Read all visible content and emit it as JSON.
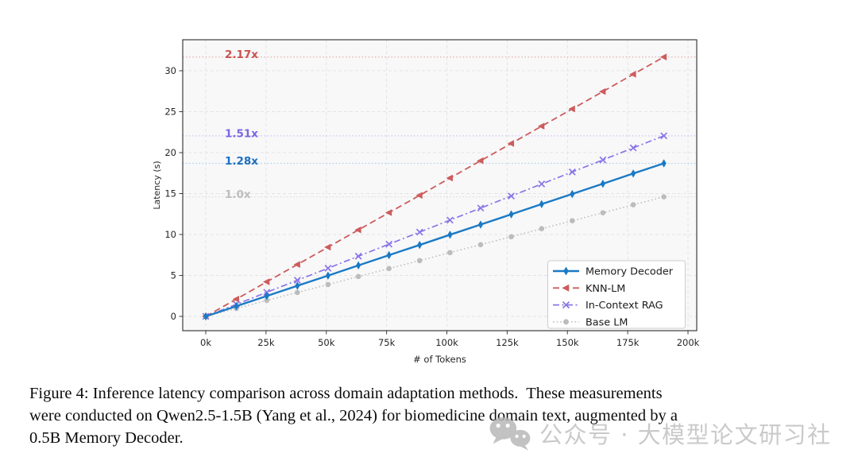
{
  "figure": {
    "caption_lines": [
      "Figure 4: Inference latency comparison across domain adaptation methods.  These measurements",
      "were conducted on Qwen2.5-1.5B (Yang et al., 2024) for biomedicine domain text, augmented by a",
      "0.5B Memory Decoder."
    ],
    "watermark": {
      "icon": "wechat-icon",
      "text": "公众号 · 大模型论文研习社",
      "color": "#bdbdbd"
    }
  },
  "chart_data": {
    "type": "line",
    "title": "",
    "xlabel": "# of Tokens",
    "ylabel": "Latency (s)",
    "x_ticks": [
      "0k",
      "25k",
      "50k",
      "75k",
      "100k",
      "125k",
      "150k",
      "175k",
      "200k"
    ],
    "x_tick_values": [
      0,
      25,
      50,
      75,
      100,
      125,
      150,
      175,
      200
    ],
    "y_ticks": [
      0,
      5,
      10,
      15,
      20,
      25,
      30
    ],
    "xlim": [
      -9.5,
      203.5
    ],
    "ylim": [
      -1.75,
      33.8
    ],
    "grid": true,
    "plot_background": "#f8f8f9",
    "x_unit": "thousands of tokens",
    "x": [
      0,
      12.7,
      25.3,
      38,
      50.7,
      63.3,
      76,
      88.7,
      101.3,
      114,
      126.7,
      139.3,
      152,
      164.7,
      177.3,
      190
    ],
    "series": [
      {
        "name": "Memory Decoder",
        "color": "#1b7ac4",
        "line_style": "solid",
        "marker": "thin-diamond",
        "values": [
          0,
          1.25,
          2.49,
          3.74,
          4.98,
          6.23,
          7.48,
          8.72,
          9.97,
          11.21,
          12.46,
          13.71,
          14.95,
          16.2,
          17.45,
          18.69
        ]
      },
      {
        "name": "KNN-LM",
        "color": "#cd5c5c",
        "line_style": "dashed",
        "marker": "triangle-left",
        "values": [
          0,
          2.11,
          4.22,
          6.34,
          8.45,
          10.56,
          12.67,
          14.78,
          16.9,
          19.01,
          21.12,
          23.23,
          25.34,
          27.46,
          29.57,
          31.68
        ]
      },
      {
        "name": "In-Context RAG",
        "color": "#8b75e6",
        "line_style": "dashdot",
        "marker": "x",
        "values": [
          0,
          1.47,
          2.94,
          4.41,
          5.88,
          7.35,
          8.82,
          10.29,
          11.76,
          13.23,
          14.7,
          16.17,
          17.64,
          19.11,
          20.58,
          22.05
        ]
      },
      {
        "name": "Base LM",
        "color": "#bcbcbc",
        "line_style": "dotted",
        "marker": "circle",
        "values": [
          0,
          0.97,
          1.95,
          2.92,
          3.89,
          4.87,
          5.84,
          6.81,
          7.79,
          8.76,
          9.73,
          10.71,
          11.68,
          12.65,
          13.63,
          14.6
        ]
      }
    ],
    "annotations": [
      {
        "label": "2.17x",
        "y": 31.68,
        "text_color": "#c75450",
        "line_color": "#eab5b3"
      },
      {
        "label": "1.51x",
        "y": 22.05,
        "text_color": "#7a66e3",
        "line_color": "#cdc3f4"
      },
      {
        "label": "1.28x",
        "y": 18.69,
        "text_color": "#1d6ec0",
        "line_color": "#a9cfec"
      },
      {
        "label": "1.0x",
        "y": 14.6,
        "text_color": "#bdbdbd",
        "line_color": "#dddddd"
      }
    ],
    "legend": {
      "position": "lower right",
      "entries": [
        "Memory Decoder",
        "KNN-LM",
        "In-Context RAG",
        "Base LM"
      ]
    }
  }
}
